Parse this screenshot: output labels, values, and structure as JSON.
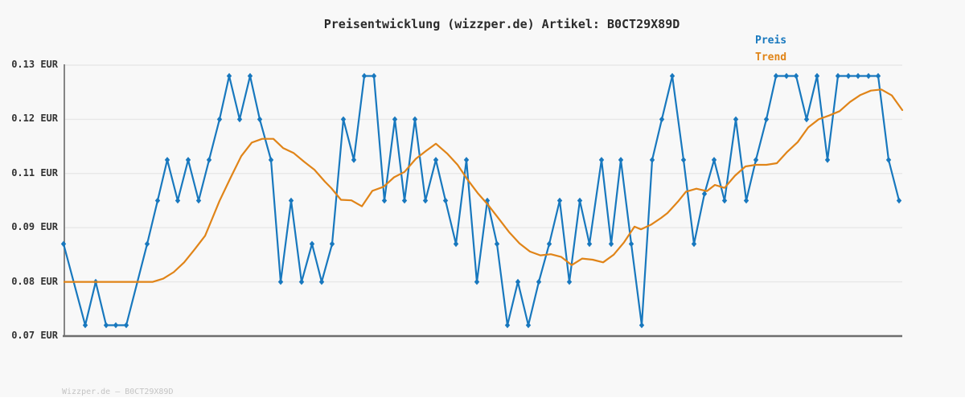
{
  "title": "Preisentwicklung (wizzper.de) Artikel: B0CT29X89D",
  "watermark": "Wizzper.de – B0CT29X89D",
  "colors": {
    "price": "#1878be",
    "trend": "#e08418",
    "grid": "#e7e7e7",
    "spine_left": "#858585",
    "spine_bottom": "#6e6e6e",
    "background": "#f8f8f8",
    "title_text": "#2a2a2a",
    "tick_text": "#333333",
    "watermark_text": "#c4c4c4"
  },
  "legend": {
    "position": "top-right",
    "items": [
      {
        "label": "Preis",
        "color": "#1878be"
      },
      {
        "label": "Trend",
        "color": "#e08418"
      }
    ]
  },
  "chart_data": {
    "type": "line",
    "title": "Preisentwicklung (wizzper.de) Artikel: B0CT29X89D",
    "grid": true,
    "y_axis": {
      "unit": "EUR",
      "tick_labels": [
        "0.13 EUR",
        "0.12 EUR",
        "0.11 EUR",
        "0.09 EUR",
        "0.08 EUR",
        "0.07 EUR"
      ],
      "tick_values": [
        0.13,
        0.12,
        0.11,
        0.09,
        0.08,
        0.07
      ],
      "note": "ticks evenly spaced; 0.10 EUR has no labeled gridline"
    },
    "x_axis": {
      "label": "",
      "tick_labels_visible": false,
      "unit": "px (time axis unlabeled in source)"
    },
    "series": [
      {
        "name": "Preis",
        "color": "#1878be",
        "marker": "diamond",
        "points": [
          [
            79,
            0.087
          ],
          [
            106,
            0.072
          ],
          [
            119,
            0.08
          ],
          [
            132,
            0.072
          ],
          [
            144,
            0.072
          ],
          [
            157,
            0.072
          ],
          [
            183,
            0.087
          ],
          [
            196,
            0.1
          ],
          [
            208,
            0.1125
          ],
          [
            221,
            0.1
          ],
          [
            234,
            0.1125
          ],
          [
            247,
            0.1
          ],
          [
            260,
            0.1125
          ],
          [
            273,
            0.12
          ],
          [
            285,
            0.128
          ],
          [
            298,
            0.12
          ],
          [
            311,
            0.128
          ],
          [
            323,
            0.12
          ],
          [
            337,
            0.1125
          ],
          [
            349,
            0.08
          ],
          [
            362,
            0.1
          ],
          [
            375,
            0.08
          ],
          [
            388,
            0.087
          ],
          [
            400,
            0.08
          ],
          [
            413,
            0.087
          ],
          [
            427,
            0.12
          ],
          [
            440,
            0.1125
          ],
          [
            453,
            0.128
          ],
          [
            465,
            0.128
          ],
          [
            478,
            0.1
          ],
          [
            491,
            0.12
          ],
          [
            503,
            0.1
          ],
          [
            516,
            0.12
          ],
          [
            529,
            0.1
          ],
          [
            542,
            0.1125
          ],
          [
            554,
            0.1
          ],
          [
            567,
            0.087
          ],
          [
            580,
            0.1125
          ],
          [
            593,
            0.08
          ],
          [
            606,
            0.1
          ],
          [
            618,
            0.087
          ],
          [
            631,
            0.072
          ],
          [
            644,
            0.08
          ],
          [
            657,
            0.072
          ],
          [
            670,
            0.08
          ],
          [
            683,
            0.087
          ],
          [
            696,
            0.1
          ],
          [
            708,
            0.08
          ],
          [
            721,
            0.1
          ],
          [
            733,
            0.087
          ],
          [
            748,
            0.1125
          ],
          [
            760,
            0.087
          ],
          [
            772,
            0.1125
          ],
          [
            785,
            0.087
          ],
          [
            798,
            0.072
          ],
          [
            811,
            0.1125
          ],
          [
            823,
            0.12
          ],
          [
            836,
            0.128
          ],
          [
            850,
            0.1125
          ],
          [
            863,
            0.087
          ],
          [
            876,
            0.1025
          ],
          [
            888,
            0.1125
          ],
          [
            901,
            0.1
          ],
          [
            915,
            0.12
          ],
          [
            928,
            0.1
          ],
          [
            940,
            0.1125
          ],
          [
            953,
            0.12
          ],
          [
            965,
            0.128
          ],
          [
            978,
            0.128
          ],
          [
            990,
            0.128
          ],
          [
            1003,
            0.12
          ],
          [
            1016,
            0.128
          ],
          [
            1029,
            0.1125
          ],
          [
            1042,
            0.128
          ],
          [
            1055,
            0.128
          ],
          [
            1067,
            0.128
          ],
          [
            1080,
            0.128
          ],
          [
            1092,
            0.128
          ],
          [
            1105,
            0.1125
          ],
          [
            1118,
            0.1
          ]
        ]
      },
      {
        "name": "Trend",
        "color": "#e08418",
        "marker": "none",
        "points": [
          [
            80,
            0.08
          ],
          [
            110,
            0.08
          ],
          [
            140,
            0.08
          ],
          [
            165,
            0.08
          ],
          [
            190,
            0.08
          ],
          [
            203,
            0.0806
          ],
          [
            216,
            0.0818
          ],
          [
            229,
            0.0836
          ],
          [
            242,
            0.086
          ],
          [
            255,
            0.0885
          ],
          [
            262,
            0.092
          ],
          [
            273,
            0.0999
          ],
          [
            287,
            0.1086
          ],
          [
            300,
            0.1132
          ],
          [
            313,
            0.1157
          ],
          [
            326,
            0.1164
          ],
          [
            340,
            0.1164
          ],
          [
            352,
            0.1147
          ],
          [
            365,
            0.1138
          ],
          [
            378,
            0.1122
          ],
          [
            391,
            0.1107
          ],
          [
            404,
            0.107
          ],
          [
            412,
            0.1046
          ],
          [
            424,
            0.1003
          ],
          [
            437,
            0.1001
          ],
          [
            450,
            0.0979
          ],
          [
            463,
            0.1036
          ],
          [
            477,
            0.1051
          ],
          [
            490,
            0.1086
          ],
          [
            503,
            0.1103
          ],
          [
            517,
            0.1127
          ],
          [
            530,
            0.1142
          ],
          [
            542,
            0.1155
          ],
          [
            556,
            0.1137
          ],
          [
            569,
            0.1116
          ],
          [
            582,
            0.1075
          ],
          [
            594,
            0.1028
          ],
          [
            607,
            0.0984
          ],
          [
            620,
            0.0934
          ],
          [
            633,
            0.0892
          ],
          [
            646,
            0.0871
          ],
          [
            659,
            0.0856
          ],
          [
            672,
            0.0849
          ],
          [
            685,
            0.0851
          ],
          [
            698,
            0.0846
          ],
          [
            711,
            0.0831
          ],
          [
            724,
            0.0843
          ],
          [
            737,
            0.0841
          ],
          [
            750,
            0.0836
          ],
          [
            763,
            0.085
          ],
          [
            776,
            0.0873
          ],
          [
            789,
            0.0904
          ],
          [
            797,
            0.0897
          ],
          [
            810,
            0.0912
          ],
          [
            822,
            0.0936
          ],
          [
            830,
            0.0954
          ],
          [
            843,
            0.0996
          ],
          [
            853,
            0.1033
          ],
          [
            866,
            0.1044
          ],
          [
            879,
            0.1035
          ],
          [
            889,
            0.1058
          ],
          [
            901,
            0.1047
          ],
          [
            914,
            0.1092
          ],
          [
            927,
            0.1113
          ],
          [
            940,
            0.1116
          ],
          [
            953,
            0.1116
          ],
          [
            966,
            0.1119
          ],
          [
            979,
            0.114
          ],
          [
            992,
            0.1158
          ],
          [
            1005,
            0.1185
          ],
          [
            1018,
            0.12
          ],
          [
            1031,
            0.1207
          ],
          [
            1044,
            0.1215
          ],
          [
            1057,
            0.1232
          ],
          [
            1070,
            0.1245
          ],
          [
            1083,
            0.1253
          ],
          [
            1096,
            0.1255
          ],
          [
            1109,
            0.1244
          ],
          [
            1122,
            0.1217
          ]
        ]
      }
    ],
    "ylim": [
      0.07,
      0.13
    ]
  }
}
